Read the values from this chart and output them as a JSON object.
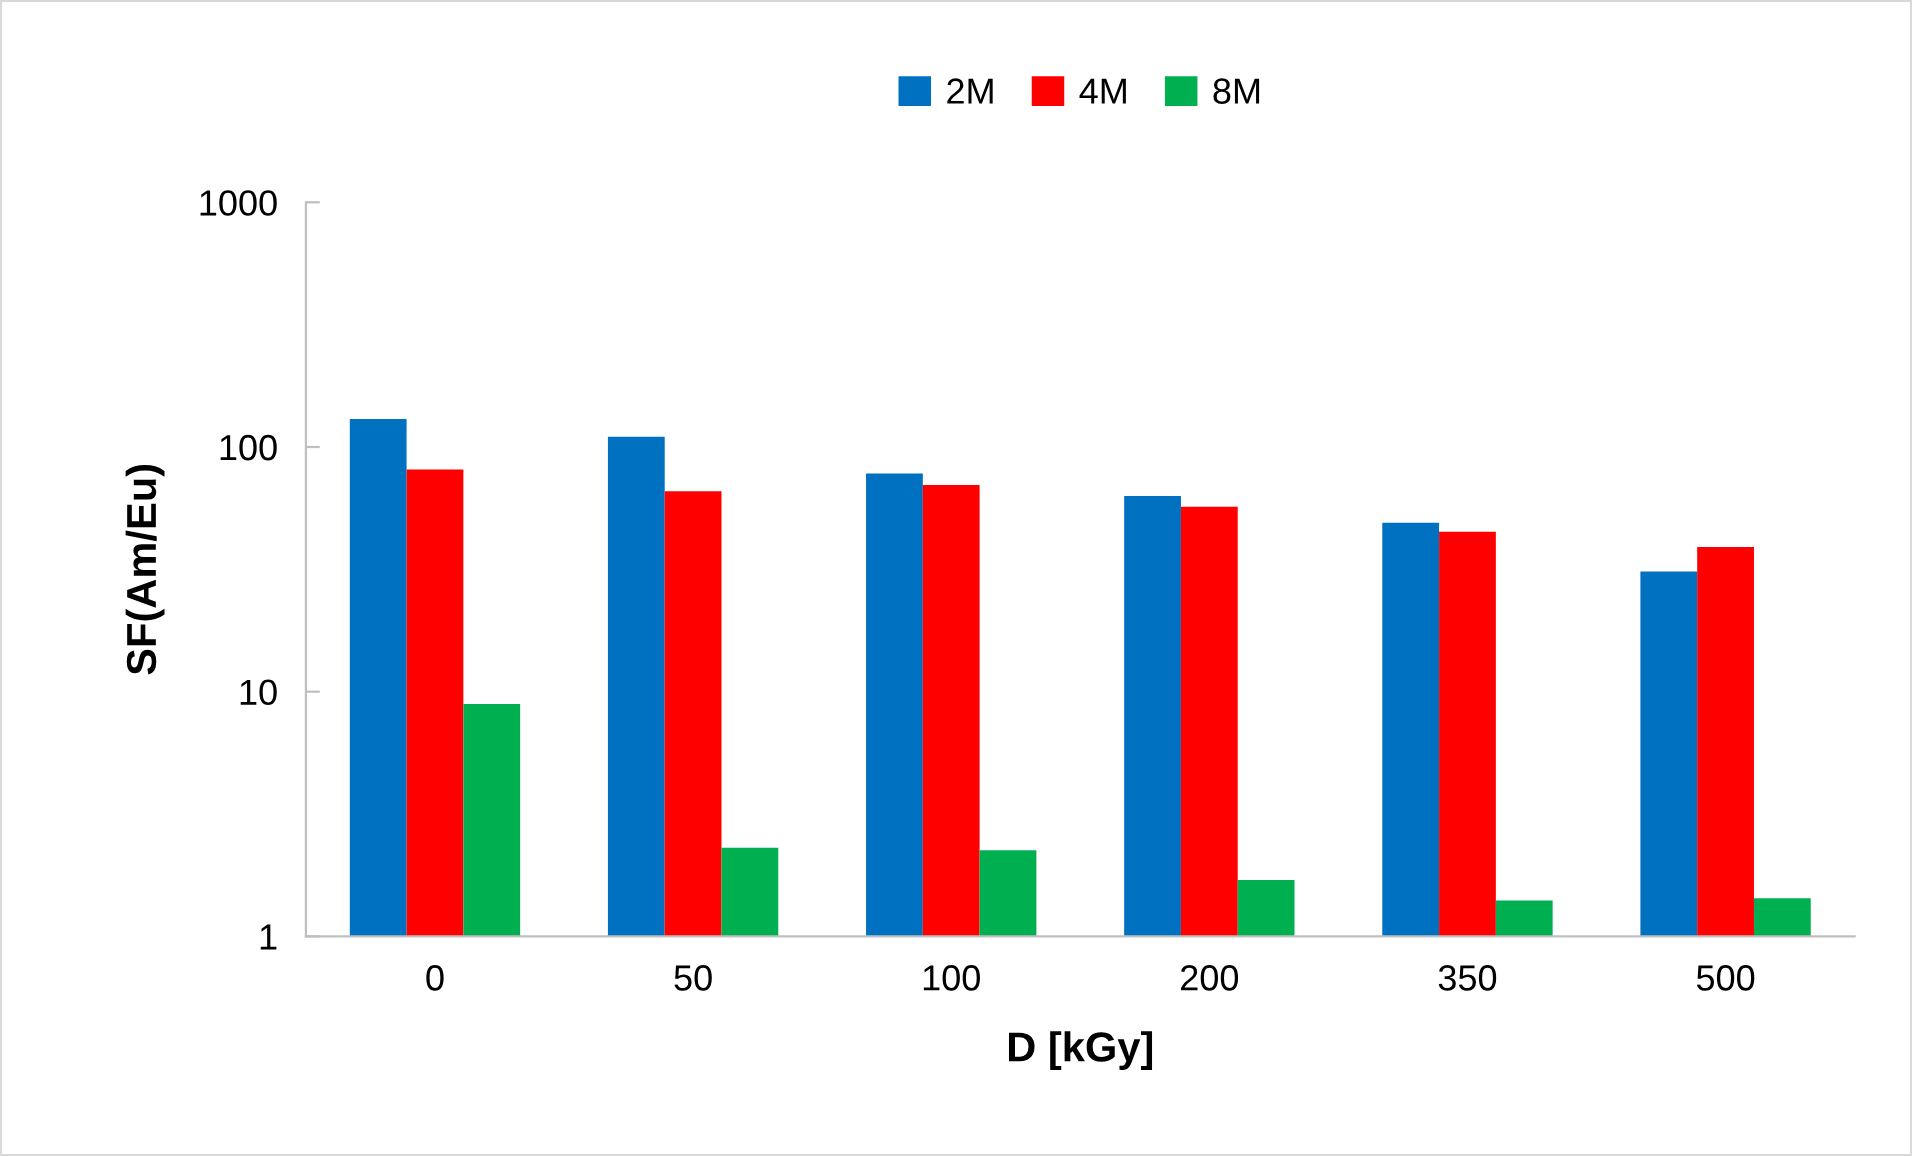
{
  "chart_data": {
    "type": "bar",
    "xlabel": "D [kGy]",
    "ylabel": "SF(Am/Eu)",
    "categories": [
      "0",
      "50",
      "100",
      "200",
      "350",
      "500"
    ],
    "series": [
      {
        "name": "2M",
        "color": "#0070c0",
        "values": [
          130,
          110,
          78,
          63,
          49,
          31
        ]
      },
      {
        "name": "4M",
        "color": "#ff0000",
        "values": [
          81,
          66,
          70,
          57,
          45,
          39
        ]
      },
      {
        "name": "8M",
        "color": "#00b050",
        "values": [
          8.9,
          2.3,
          2.25,
          1.7,
          1.4,
          1.43
        ]
      }
    ],
    "log": "y",
    "ylim": [
      1,
      1000
    ],
    "yticks": [
      1,
      10,
      100,
      1000
    ],
    "grid": false,
    "legend": "top"
  }
}
